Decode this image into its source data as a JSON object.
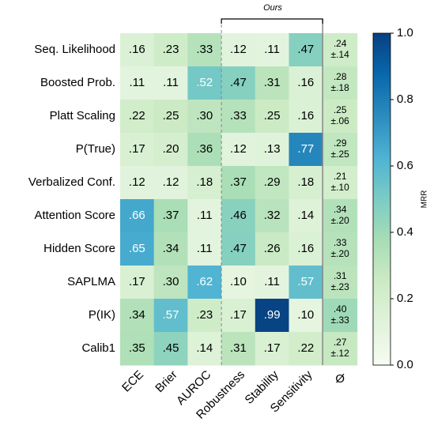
{
  "chart_data": {
    "type": "heatmap",
    "rows": [
      "Seq. Likelihood",
      "Boosted Prob.",
      "Platt Scaling",
      "P(True)",
      "Verbalized Conf.",
      "Attention Score",
      "Hidden Score",
      "SAPLMA",
      "P(IK)",
      "Calib1"
    ],
    "columns": [
      "ECE",
      "Brier",
      "AUROC",
      "Robustness",
      "Stability",
      "Sensitivity"
    ],
    "values": [
      [
        0.16,
        0.23,
        0.33,
        0.12,
        0.11,
        0.47
      ],
      [
        0.11,
        0.11,
        0.52,
        0.47,
        0.31,
        0.16
      ],
      [
        0.22,
        0.25,
        0.3,
        0.33,
        0.25,
        0.16
      ],
      [
        0.17,
        0.2,
        0.36,
        0.12,
        0.13,
        0.77
      ],
      [
        0.12,
        0.12,
        0.18,
        0.37,
        0.29,
        0.18
      ],
      [
        0.66,
        0.37,
        0.11,
        0.46,
        0.32,
        0.14
      ],
      [
        0.65,
        0.34,
        0.11,
        0.47,
        0.26,
        0.16
      ],
      [
        0.17,
        0.3,
        0.62,
        0.1,
        0.11,
        0.57
      ],
      [
        0.34,
        0.57,
        0.23,
        0.17,
        0.99,
        0.1
      ],
      [
        0.35,
        0.45,
        0.14,
        0.31,
        0.17,
        0.22
      ]
    ],
    "value_labels": [
      [
        ".16",
        ".23",
        ".33",
        ".12",
        ".11",
        ".47"
      ],
      [
        ".11",
        ".11",
        ".52",
        ".47",
        ".31",
        ".16"
      ],
      [
        ".22",
        ".25",
        ".30",
        ".33",
        ".25",
        ".16"
      ],
      [
        ".17",
        ".20",
        ".36",
        ".12",
        ".13",
        ".77"
      ],
      [
        ".12",
        ".12",
        ".18",
        ".37",
        ".29",
        ".18"
      ],
      [
        ".66",
        ".37",
        ".11",
        ".46",
        ".32",
        ".14"
      ],
      [
        ".65",
        ".34",
        ".11",
        ".47",
        ".26",
        ".16"
      ],
      [
        ".17",
        ".30",
        ".62",
        ".10",
        ".11",
        ".57"
      ],
      [
        ".34",
        ".57",
        ".23",
        ".17",
        ".99",
        ".10"
      ],
      [
        ".35",
        ".45",
        ".14",
        ".31",
        ".17",
        ".22"
      ]
    ],
    "summary": {
      "name": "Ø",
      "means": [
        0.24,
        0.28,
        0.25,
        0.29,
        0.21,
        0.34,
        0.33,
        0.31,
        0.4,
        0.27
      ],
      "stds": [
        0.14,
        0.18,
        0.06,
        0.25,
        0.1,
        0.2,
        0.2,
        0.23,
        0.33,
        0.12
      ],
      "mean_labels": [
        ".24",
        ".28",
        ".25",
        ".29",
        ".21",
        ".34",
        ".33",
        ".31",
        ".40",
        ".27"
      ],
      "std_labels": [
        "±.14",
        "±.18",
        "±.06",
        "±.25",
        "±.10",
        "±.20",
        "±.20",
        "±.23",
        "±.33",
        "±.12"
      ]
    },
    "annotation": "Ours",
    "colormap": "GnBu",
    "clim": [
      0,
      1
    ],
    "colorbar": {
      "label": "MRR",
      "ticks": [
        {
          "value": 0,
          "label": "0.0"
        },
        {
          "value": 0.2,
          "label": "0.2"
        },
        {
          "value": 0.4,
          "label": "0.4"
        },
        {
          "value": 0.6,
          "label": "0.6"
        },
        {
          "value": 0.8,
          "label": "0.8"
        },
        {
          "value": 1,
          "label": "1.0"
        }
      ]
    }
  }
}
